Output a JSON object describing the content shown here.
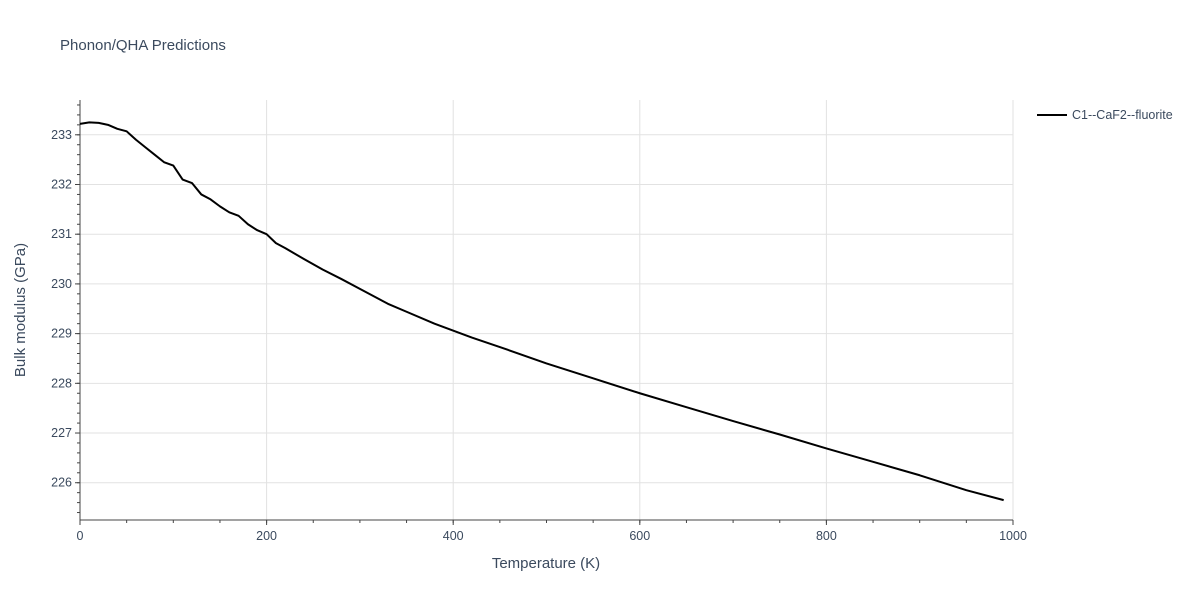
{
  "chart_data": {
    "type": "line",
    "title": "Phonon/QHA Predictions",
    "xlabel": "Temperature (K)",
    "ylabel": "Bulk modulus (GPa)",
    "xlim": [
      0,
      1000
    ],
    "ylim": [
      225.25,
      233.7
    ],
    "x_ticks": [
      "0",
      "200",
      "400",
      "600",
      "800",
      "1000"
    ],
    "y_ticks": [
      "226",
      "227",
      "228",
      "229",
      "230",
      "231",
      "232",
      "233"
    ],
    "grid": true,
    "legend_position": "top-right",
    "series": [
      {
        "name": "C1--CaF2--fluorite",
        "color": "#000000",
        "x": [
          0,
          10,
          20,
          30,
          40,
          50,
          60,
          70,
          80,
          90,
          100,
          110,
          120,
          130,
          140,
          150,
          160,
          170,
          180,
          190,
          200,
          210,
          220,
          240,
          260,
          280,
          300,
          330,
          350,
          380,
          420,
          450,
          500,
          550,
          600,
          650,
          700,
          750,
          800,
          850,
          900,
          950,
          990
        ],
        "y": [
          233.22,
          233.25,
          233.24,
          233.2,
          233.12,
          233.07,
          232.9,
          232.75,
          232.6,
          232.45,
          232.38,
          232.1,
          232.03,
          231.8,
          231.7,
          231.56,
          231.44,
          231.37,
          231.2,
          231.08,
          231.0,
          230.82,
          230.72,
          230.5,
          230.29,
          230.1,
          229.9,
          229.6,
          229.44,
          229.2,
          228.92,
          228.73,
          228.4,
          228.1,
          227.8,
          227.52,
          227.24,
          226.97,
          226.69,
          226.42,
          226.15,
          225.85,
          225.65
        ]
      }
    ]
  }
}
